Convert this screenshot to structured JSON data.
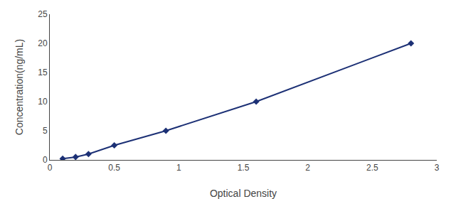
{
  "chart_data": {
    "type": "line",
    "xlabel": "Optical Density",
    "ylabel": "Concentration(ng/mL)",
    "x": [
      0.1,
      0.2,
      0.3,
      0.5,
      0.9,
      1.6,
      2.8
    ],
    "values": [
      0.2,
      0.5,
      1.0,
      2.5,
      5.0,
      10.0,
      20.0
    ],
    "color": "#1c3075",
    "marker": "diamond",
    "line_style": "solid",
    "xlim": [
      0,
      3.0
    ],
    "ylim": [
      0,
      25
    ],
    "xticks": [
      0,
      0.5,
      1,
      1.5,
      2,
      2.5,
      3
    ],
    "yticks": [
      0,
      5,
      10,
      15,
      20,
      25
    ],
    "grid": false
  }
}
